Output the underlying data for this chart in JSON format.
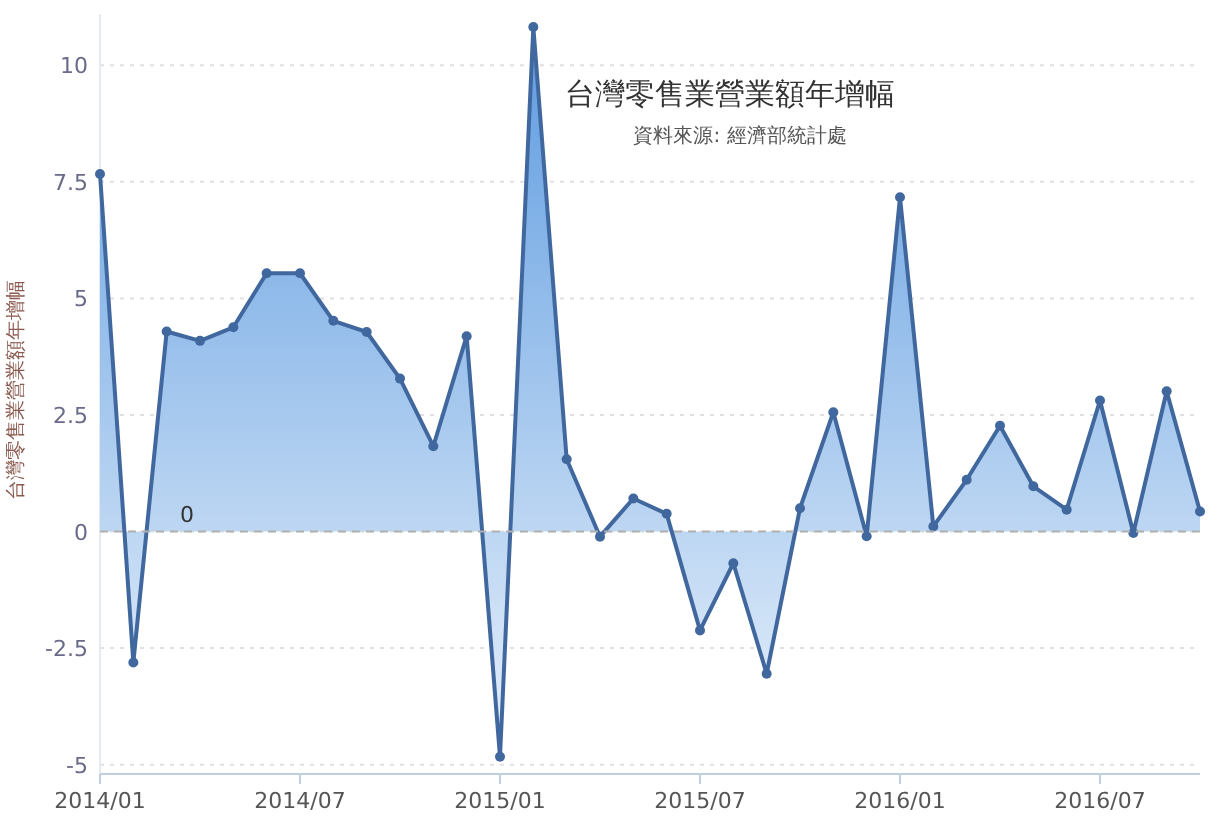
{
  "chart_data": {
    "type": "area",
    "title": "台灣零售業營業額年增幅",
    "subtitle": "資料來源: 經濟部統計處",
    "ylabel": "台灣零售業營業額年增幅",
    "x": [
      "2014-01",
      "2014-02",
      "2014-03",
      "2014-04",
      "2014-05",
      "2014-06",
      "2014-07",
      "2014-08",
      "2014-09",
      "2014-10",
      "2014-11",
      "2014-12",
      "2015-01",
      "2015-02",
      "2015-03",
      "2015-04",
      "2015-05",
      "2015-06",
      "2015-07",
      "2015-08",
      "2015-09",
      "2015-10",
      "2015-11",
      "2015-12",
      "2016-01",
      "2016-02",
      "2016-03",
      "2016-04",
      "2016-05",
      "2016-06",
      "2016-07",
      "2016-08",
      "2016-09",
      "2016-10"
    ],
    "series": [
      {
        "color": "#41689e",
        "values": [
          7.67,
          -2.81,
          4.29,
          4.09,
          4.38,
          5.54,
          5.54,
          4.52,
          4.28,
          3.28,
          1.83,
          4.19,
          -4.83,
          10.82,
          1.55,
          -0.11,
          0.71,
          0.38,
          -2.12,
          -0.68,
          -3.05,
          0.5,
          2.56,
          -0.1,
          7.17,
          0.11,
          1.11,
          2.27,
          0.97,
          0.47,
          2.81,
          -0.03,
          3.01,
          0.43
        ]
      }
    ],
    "xlim": [
      "2014-01",
      "2016-10"
    ],
    "xticks": [
      {
        "value": "2014-01",
        "label": "2014/01"
      },
      {
        "value": "2014-07",
        "label": "2014/07"
      },
      {
        "value": "2015-01",
        "label": "2015/01"
      },
      {
        "value": "2015-07",
        "label": "2015/07"
      },
      {
        "value": "2016-01",
        "label": "2016/01"
      },
      {
        "value": "2016-07",
        "label": "2016/07"
      }
    ],
    "ylim": [
      -5.2,
      11.1
    ],
    "yticks": [
      -5,
      -2.5,
      0,
      2.5,
      5,
      7.5,
      10
    ],
    "ref_lines": [
      {
        "axis": "y",
        "value": 0,
        "label": "0",
        "color": "#b0b0b0",
        "line_style": "dashed"
      }
    ],
    "grid": "y",
    "marker": "circle",
    "line_style": "solid"
  }
}
